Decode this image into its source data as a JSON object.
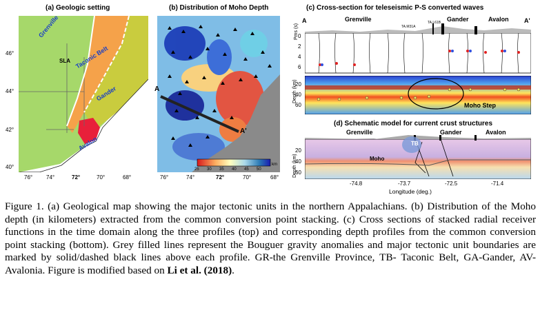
{
  "panel_a": {
    "title": "(a) Geologic setting",
    "lat_ticks": [
      "46°",
      "44°",
      "42°",
      "40°"
    ],
    "lon_ticks": [
      "76°",
      "74°",
      "72°",
      "70°",
      "68°"
    ],
    "units": [
      "Grenville",
      "Taconic Belt",
      "Gander",
      "Avalon"
    ],
    "sla_label": "SLA"
  },
  "panel_b": {
    "title": "(b) Distribution of Moho Depth",
    "lon_ticks": [
      "76°",
      "74°",
      "72°",
      "70°",
      "68°"
    ],
    "profile_start": "A",
    "profile_end": "A'",
    "colorbar_ticks": [
      "25",
      "30",
      "35",
      "40",
      "45",
      "50"
    ],
    "colorbar_unit": "km"
  },
  "panel_c": {
    "title": "(c) Cross-section for teleseismic P-S converted waves",
    "regions": [
      "Grenville",
      "Gander",
      "Avalon"
    ],
    "end_left": "A",
    "end_right": "A'",
    "stations": [
      "TA.M31A",
      "TA.L61B"
    ],
    "pms_label": "Pms (s)",
    "pms_ticks": [
      "0",
      "2",
      "4",
      "6"
    ],
    "depth_label": "Depth (km)",
    "depth_ticks": [
      "20",
      "40",
      "60"
    ],
    "moho_step": "Moho Step"
  },
  "panel_d": {
    "title": "(d) Schematic model for current crust structures",
    "regions": [
      "Grenville",
      "Gander",
      "Avalon"
    ],
    "tb_label": "TB",
    "moho_label": "Moho",
    "depth_label": "Depth (km)",
    "depth_ticks": [
      "20",
      "40",
      "60"
    ],
    "lon_ticks": [
      "-74.8",
      "-73.7",
      "-72.5",
      "-71.4"
    ],
    "xlabel": "Longitude (deg.)"
  },
  "caption": {
    "text": "Figure 1. (a) Geological map showing the major tectonic units in the northern Appalachians. (b) Distribution of the Moho depth (in kilometers) extracted from the common conversion point stacking. (c) Cross sections of stacked radial receiver functions in the time domain along the three profiles (top) and corresponding depth profiles from the common conversion point stacking (bottom). Grey filled lines represent the Bouguer gravity anomalies and major tectonic unit boundaries are marked by solid/dashed black lines above each profile. GR-the Grenville Province, TB- Taconic Belt, GA-Gander, AV-Avalonia. Figure is modified based on ",
    "ref": "Li et al. (2018)",
    "end": "."
  },
  "colors": {
    "grenville": "#a6d86a",
    "taconic": "#f5a24a",
    "gander": "#c9cc3e",
    "avalon": "#e8203a",
    "ocean": "#ffffff"
  }
}
